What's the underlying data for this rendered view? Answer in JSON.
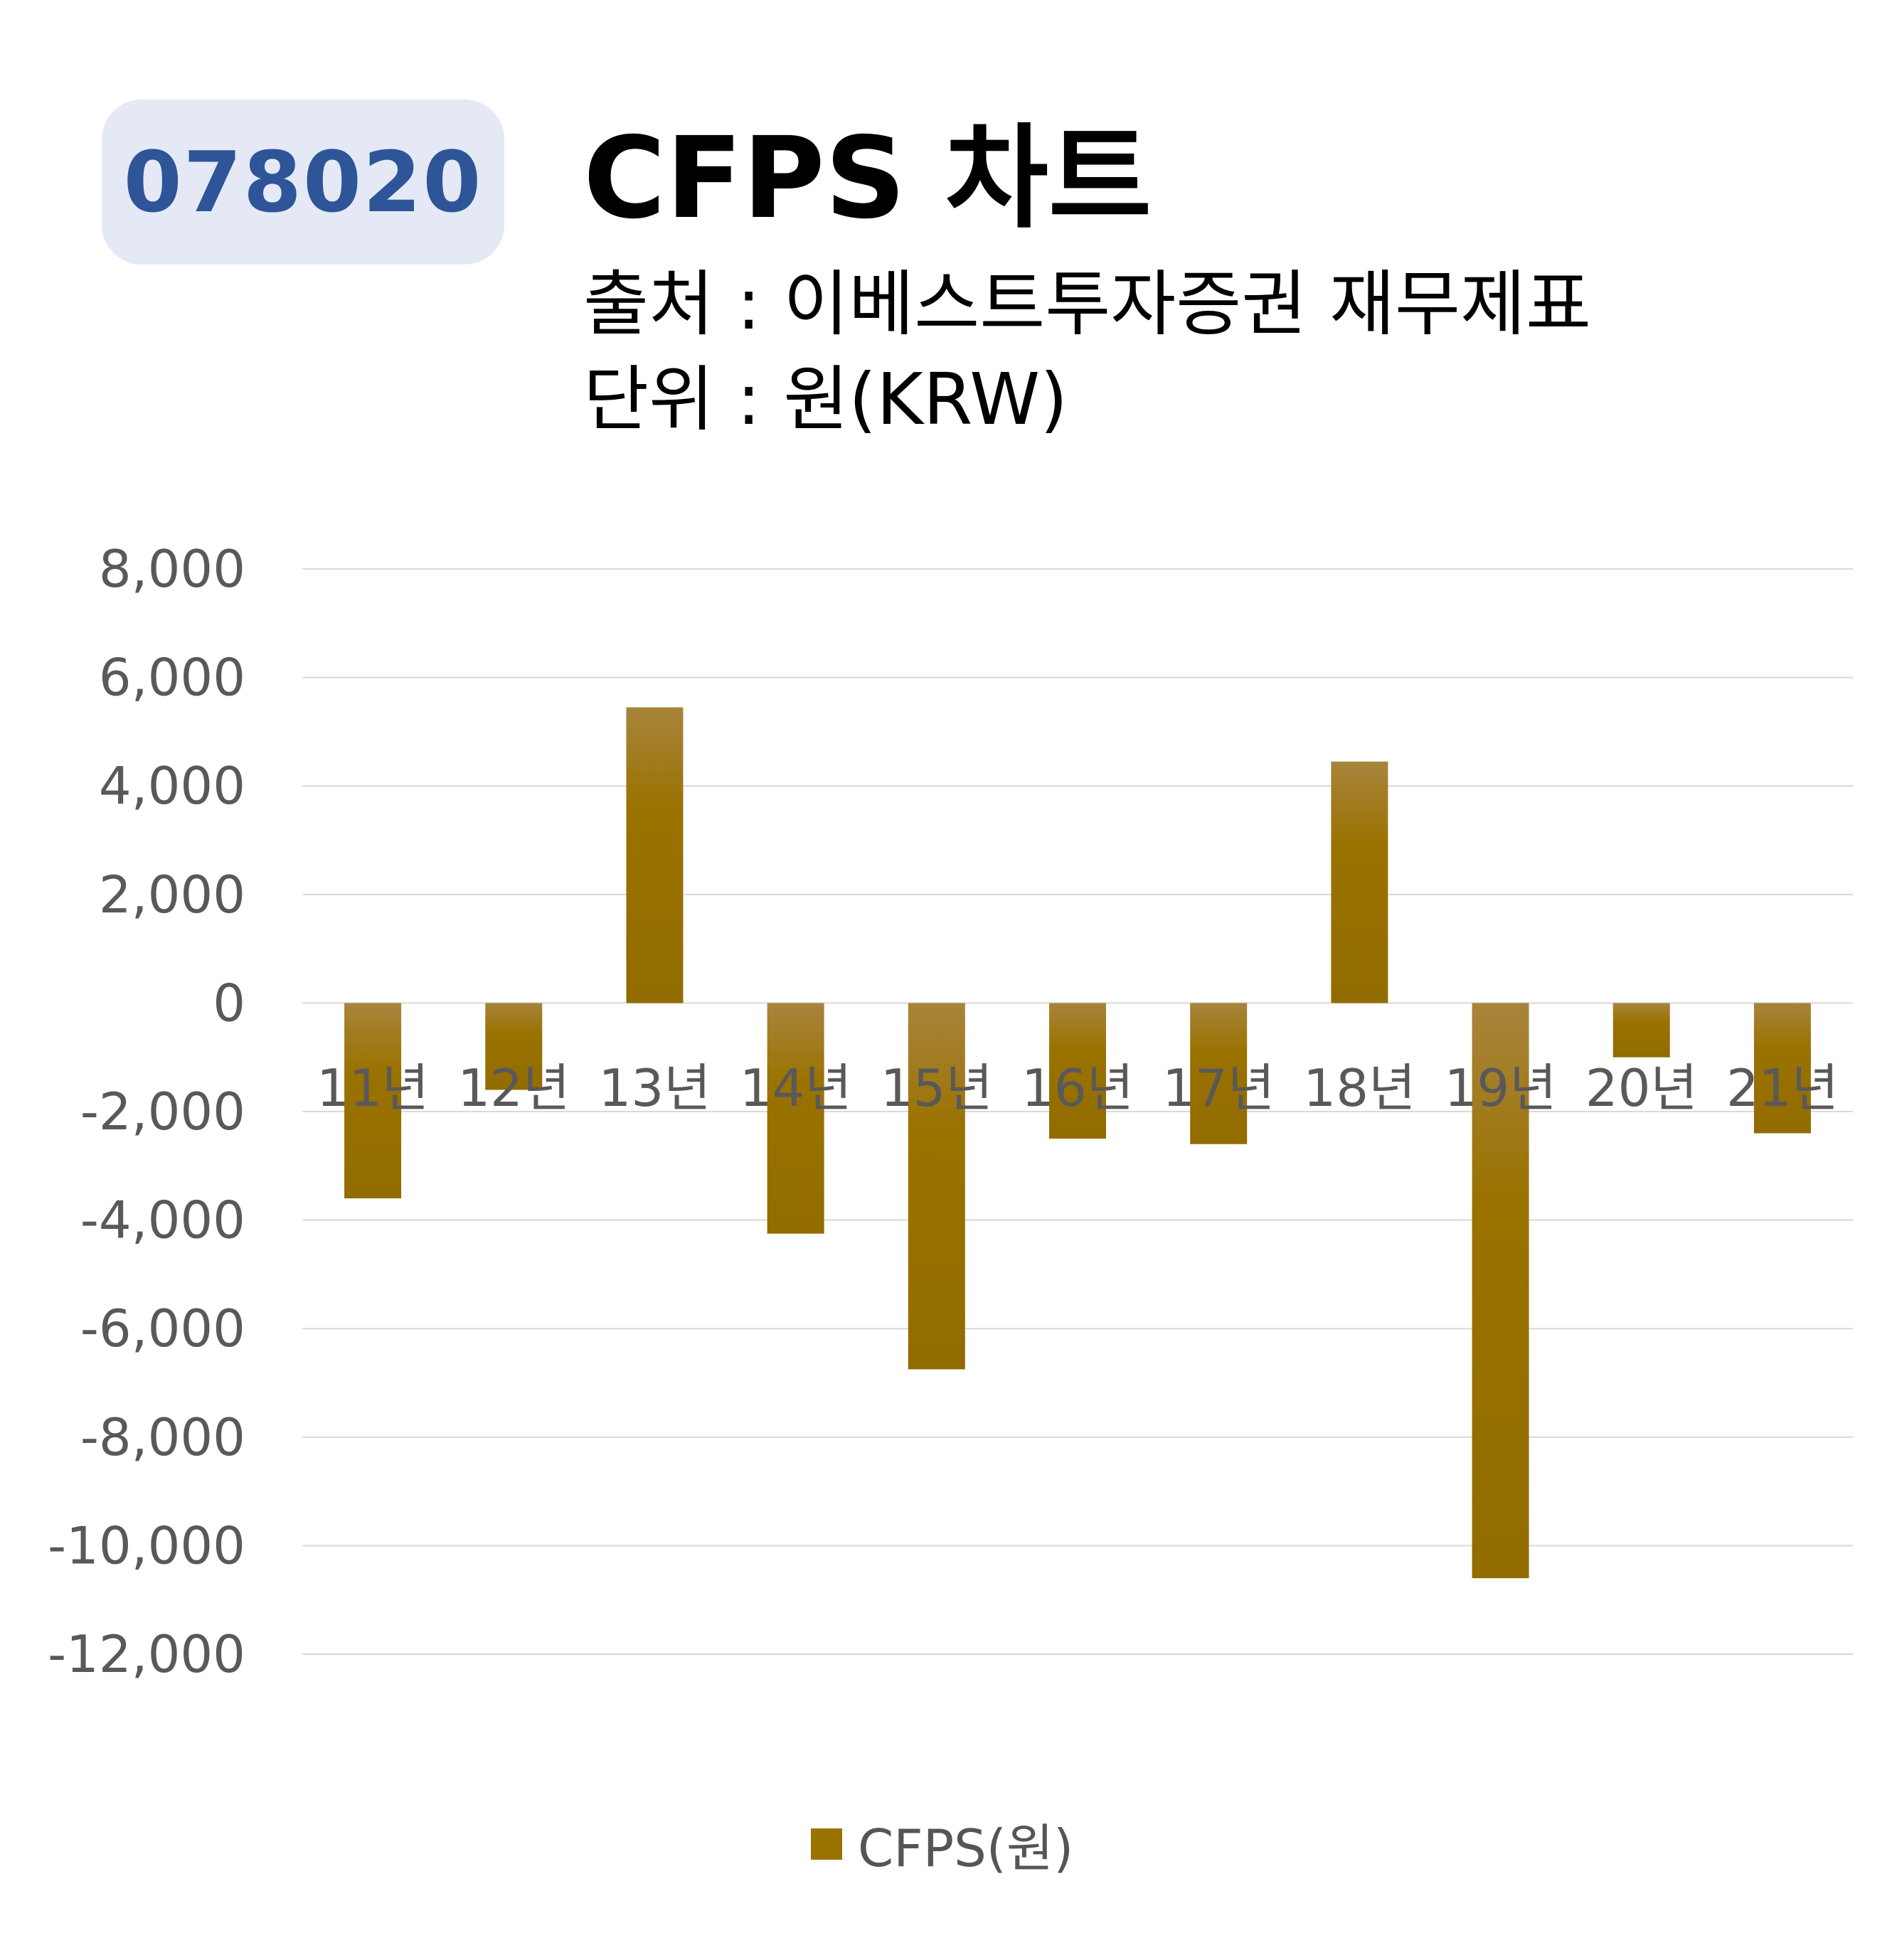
{
  "header": {
    "code": "078020",
    "title": "CFPS 차트",
    "source": "출처 : 이베스트투자증권 재무제표",
    "unit": "단위 : 원(KRW)"
  },
  "colors": {
    "bar": "#9a7200",
    "bar_top": "#a8843c",
    "badge_bg": "#e4e9f5",
    "badge_text": "#2e5597",
    "grid": "#d9d9d9",
    "axis_text": "#595959"
  },
  "chart_data": {
    "type": "bar",
    "title": "CFPS 차트",
    "categories": [
      "11년",
      "12년",
      "13년",
      "14년",
      "15년",
      "16년",
      "17년",
      "18년",
      "19년",
      "20년",
      "21년"
    ],
    "series": [
      {
        "name": "CFPS(원)",
        "values": [
          -3600,
          -1600,
          5450,
          -4250,
          -6750,
          -2500,
          -2600,
          4450,
          -10600,
          -1000,
          -2400
        ]
      }
    ],
    "yticks": [
      "8,000",
      "6,000",
      "4,000",
      "2,000",
      "0",
      "-2,000",
      "-4,000",
      "-6,000",
      "-8,000",
      "-10,000",
      "-12,000"
    ],
    "ylim": [
      -12000,
      8000
    ],
    "grid": true,
    "legend_position": "bottom"
  }
}
